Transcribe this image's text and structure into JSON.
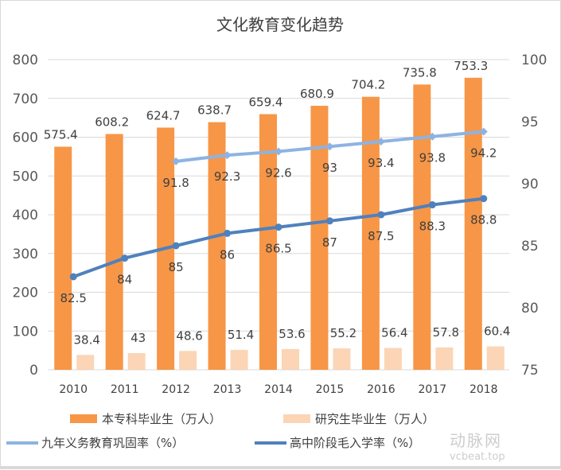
{
  "chart_data": {
    "type": "bar+line",
    "title": "文化教育变化趋势",
    "categories": [
      "2010",
      "2011",
      "2012",
      "2013",
      "2014",
      "2015",
      "2016",
      "2017",
      "2018"
    ],
    "left_axis": {
      "ylim": [
        0,
        800
      ],
      "ticks": [
        0,
        100,
        200,
        300,
        400,
        500,
        600,
        700,
        800
      ]
    },
    "right_axis": {
      "ylim": [
        75,
        100
      ],
      "ticks": [
        75,
        80,
        85,
        90,
        95,
        100
      ]
    },
    "grid": true,
    "legend_position": "bottom",
    "series": [
      {
        "name": "本专科毕业生（万人）",
        "type": "bar",
        "axis": "left",
        "color": "#f79646",
        "values": [
          575.4,
          608.2,
          624.7,
          638.7,
          659.4,
          680.9,
          704.2,
          735.8,
          753.3
        ]
      },
      {
        "name": "研究生毕业生（万人）",
        "type": "bar",
        "axis": "left",
        "color": "#fbd5b5",
        "values": [
          38.4,
          43,
          48.6,
          51.4,
          53.6,
          55.2,
          56.4,
          57.8,
          60.4
        ]
      },
      {
        "name": "九年义务教育巩固率（%）",
        "type": "line",
        "axis": "right",
        "color": "#8db3e2",
        "values": [
          null,
          null,
          91.8,
          92.3,
          92.6,
          93,
          93.4,
          93.8,
          94.2
        ]
      },
      {
        "name": "高中阶段毛入学率（%）",
        "type": "line",
        "axis": "right",
        "color": "#4f81bd",
        "values": [
          82.5,
          84,
          85,
          86,
          86.5,
          87,
          87.5,
          88.3,
          88.8
        ]
      }
    ]
  },
  "watermark": {
    "brand": "动脉网",
    "site": "vcbeat.top"
  }
}
